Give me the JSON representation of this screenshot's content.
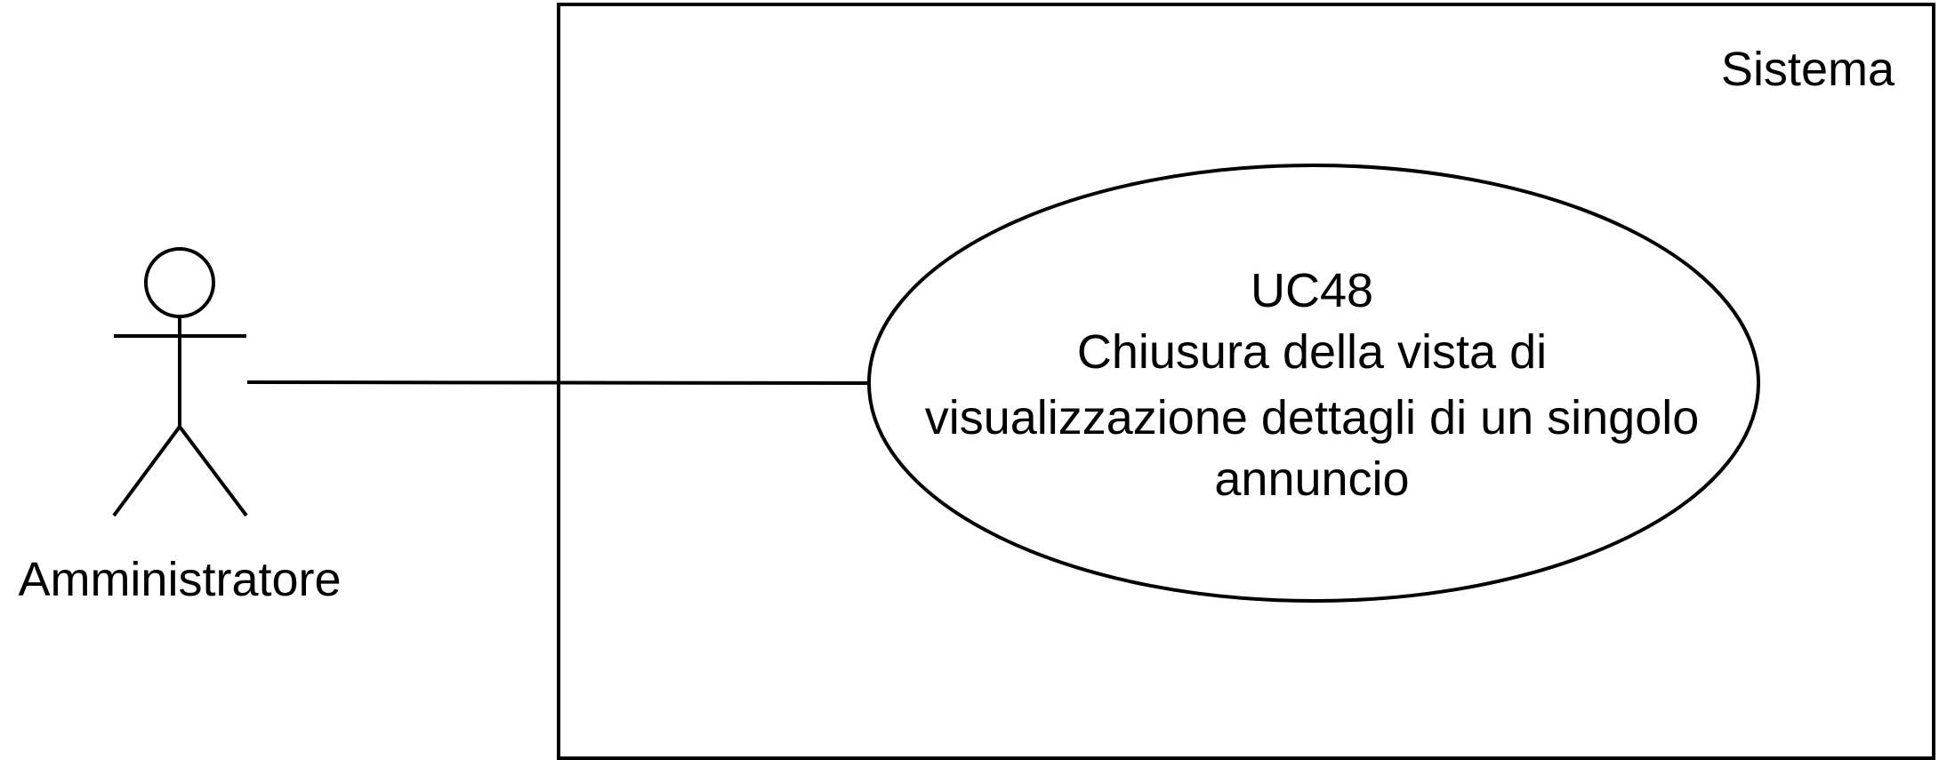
{
  "diagram": {
    "type": "use-case",
    "system": {
      "label": "Sistema"
    },
    "actor": {
      "label": "Amministratore"
    },
    "use_case": {
      "id": "UC48",
      "label_lines": [
        "Chiusura della vista di",
        "visualizzazione dettagli di un singolo",
        "annuncio"
      ]
    },
    "association": {
      "from": "Amministratore",
      "to": "UC48"
    },
    "colors": {
      "stroke": "#000000",
      "background": "#ffffff"
    }
  }
}
